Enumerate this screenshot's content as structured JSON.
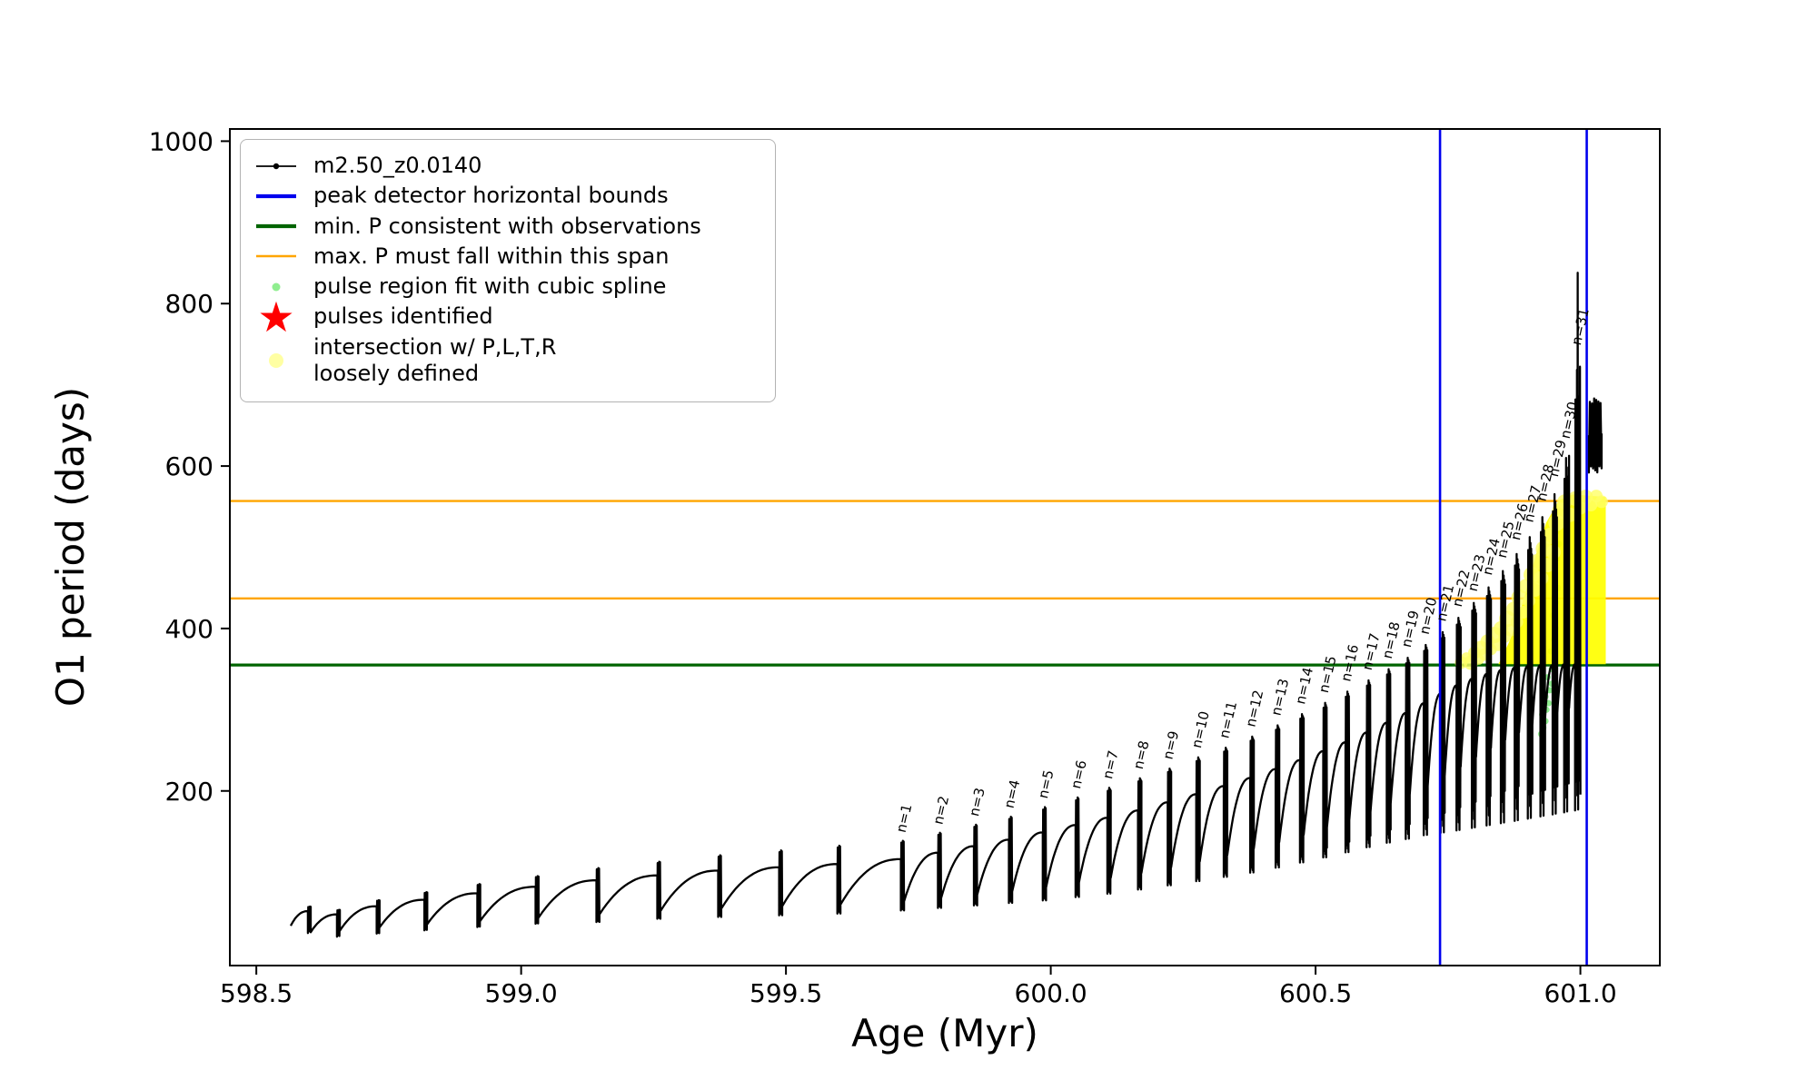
{
  "legend": {
    "items": [
      {
        "label": "m2.50_z0.0140",
        "marker": "line-dot",
        "color": "#000000",
        "icon": "series-line-icon"
      },
      {
        "label": "peak detector horizontal bounds",
        "marker": "line-thick",
        "color": "#0000ee",
        "icon": "blue-line-icon"
      },
      {
        "label": "min. P consistent with observations",
        "marker": "line-thick",
        "color": "#006400",
        "icon": "green-line-icon"
      },
      {
        "label": "max. P must fall within this span",
        "marker": "line",
        "color": "#ffa500",
        "icon": "orange-line-icon"
      },
      {
        "label": "pulse region fit with cubic spline",
        "marker": "dot",
        "color": "#90ee90",
        "icon": "spline-dot-icon"
      },
      {
        "label": "pulses identified",
        "marker": "star",
        "color": "#ff0000",
        "icon": "star-icon"
      },
      {
        "label": "intersection w/ P,L,T,R\nloosely defined",
        "marker": "dot-large",
        "color": "#ffff99",
        "icon": "yellow-dot-icon"
      }
    ]
  },
  "chart_data": {
    "type": "line",
    "title": "",
    "xlabel": "Age (Myr)",
    "ylabel": "O1 period (days)",
    "xlim": [
      598.45,
      601.15
    ],
    "ylim": [
      -15,
      1015
    ],
    "xticks": {
      "values": [
        598.5,
        599.0,
        599.5,
        600.0,
        600.5,
        601.0
      ],
      "labels": [
        "598.5",
        "599.0",
        "599.5",
        "600.0",
        "600.5",
        "601.0"
      ]
    },
    "yticks": {
      "values": [
        200,
        400,
        600,
        800,
        1000
      ],
      "labels": [
        "200",
        "400",
        "600",
        "800",
        "1000"
      ]
    },
    "series_label": "m2.50_z0.0140",
    "colors": {
      "series": "#000000",
      "peak_bounds": "#0000ee",
      "min_p": "#006400",
      "max_p_span": "#ffa500",
      "spline": "#90ee90",
      "pulses": "#ff0000",
      "intersection": "#ffff00",
      "intersection_soft": "#ffff66"
    },
    "vlines": [
      600.735,
      601.012
    ],
    "hline_green": 355,
    "hlines_orange": [
      437,
      557
    ],
    "lead_in": {
      "x": 598.565,
      "y": 34
    },
    "pulses": [
      {
        "label": null,
        "x": 598.6,
        "pk": 58,
        "sh": 52,
        "tr": 34,
        "dp": 24
      },
      {
        "label": null,
        "x": 598.655,
        "pk": 54,
        "sh": 48,
        "tr": 26,
        "dp": 20
      },
      {
        "label": null,
        "x": 598.73,
        "pk": 66,
        "sh": 58,
        "tr": 28,
        "dp": 24
      },
      {
        "label": null,
        "x": 598.82,
        "pk": 76,
        "sh": 66,
        "tr": 32,
        "dp": 28
      },
      {
        "label": null,
        "x": 598.92,
        "pk": 86,
        "sh": 74,
        "tr": 36,
        "dp": 32
      },
      {
        "label": null,
        "x": 599.03,
        "pk": 96,
        "sh": 82,
        "tr": 40,
        "dp": 36
      },
      {
        "label": null,
        "x": 599.145,
        "pk": 106,
        "sh": 90,
        "tr": 44,
        "dp": 38
      },
      {
        "label": null,
        "x": 599.26,
        "pk": 114,
        "sh": 96,
        "tr": 48,
        "dp": 42
      },
      {
        "label": null,
        "x": 599.375,
        "pk": 122,
        "sh": 102,
        "tr": 52,
        "dp": 44
      },
      {
        "label": null,
        "x": 599.49,
        "pk": 128,
        "sh": 106,
        "tr": 55,
        "dp": 46
      },
      {
        "label": null,
        "x": 599.6,
        "pk": 134,
        "sh": 110,
        "tr": 58,
        "dp": 48
      },
      {
        "label": "n=1",
        "x": 599.72,
        "pk": 140,
        "sh": 116,
        "tr": 60,
        "dp": 52
      },
      {
        "label": "n=2",
        "x": 599.79,
        "pk": 150,
        "sh": 124,
        "tr": 64,
        "dp": 55
      },
      {
        "label": "n=3",
        "x": 599.858,
        "pk": 160,
        "sh": 132,
        "tr": 68,
        "dp": 58
      },
      {
        "label": "n=4",
        "x": 599.924,
        "pk": 170,
        "sh": 140,
        "tr": 72,
        "dp": 61
      },
      {
        "label": "n=5",
        "x": 599.988,
        "pk": 182,
        "sh": 149,
        "tr": 76,
        "dp": 64
      },
      {
        "label": "n=6",
        "x": 600.05,
        "pk": 194,
        "sh": 158,
        "tr": 81,
        "dp": 68
      },
      {
        "label": "n=7",
        "x": 600.11,
        "pk": 206,
        "sh": 167,
        "tr": 87,
        "dp": 72
      },
      {
        "label": "n=8",
        "x": 600.168,
        "pk": 218,
        "sh": 176,
        "tr": 93,
        "dp": 77
      },
      {
        "label": "n=9",
        "x": 600.224,
        "pk": 230,
        "sh": 186,
        "tr": 99,
        "dp": 82
      },
      {
        "label": "n=10",
        "x": 600.278,
        "pk": 244,
        "sh": 196,
        "tr": 106,
        "dp": 87
      },
      {
        "label": "n=11",
        "x": 600.33,
        "pk": 256,
        "sh": 206,
        "tr": 113,
        "dp": 92
      },
      {
        "label": "n=12",
        "x": 600.38,
        "pk": 270,
        "sh": 216,
        "tr": 121,
        "dp": 97
      },
      {
        "label": "n=13",
        "x": 600.428,
        "pk": 284,
        "sh": 227,
        "tr": 129,
        "dp": 103
      },
      {
        "label": "n=14",
        "x": 600.474,
        "pk": 298,
        "sh": 238,
        "tr": 137,
        "dp": 109
      },
      {
        "label": "n=15",
        "x": 600.518,
        "pk": 312,
        "sh": 249,
        "tr": 146,
        "dp": 115
      },
      {
        "label": "n=16",
        "x": 600.56,
        "pk": 326,
        "sh": 260,
        "tr": 155,
        "dp": 121
      },
      {
        "label": "n=17",
        "x": 600.6,
        "pk": 340,
        "sh": 272,
        "tr": 164,
        "dp": 127
      },
      {
        "label": "n=18",
        "x": 600.638,
        "pk": 354,
        "sh": 284,
        "tr": 174,
        "dp": 132
      },
      {
        "label": "n=19",
        "x": 600.674,
        "pk": 368,
        "sh": 296,
        "tr": 184,
        "dp": 136
      },
      {
        "label": "n=20",
        "x": 600.708,
        "pk": 384,
        "sh": 308,
        "tr": 195,
        "dp": 140
      },
      {
        "label": "n=21",
        "x": 600.74,
        "pk": 400,
        "sh": 320,
        "tr": 206,
        "dp": 142
      },
      {
        "label": "n=22",
        "x": 600.77,
        "pk": 418,
        "sh": 330,
        "tr": 218,
        "dp": 144
      },
      {
        "label": "n=23",
        "x": 600.799,
        "pk": 437,
        "sh": 338,
        "tr": 230,
        "dp": 146
      },
      {
        "label": "n=24",
        "x": 600.827,
        "pk": 457,
        "sh": 344,
        "tr": 242,
        "dp": 148
      },
      {
        "label": "n=25",
        "x": 600.854,
        "pk": 478,
        "sh": 349,
        "tr": 253,
        "dp": 150
      },
      {
        "label": "n=26",
        "x": 600.88,
        "pk": 500,
        "sh": 352,
        "tr": 263,
        "dp": 152
      },
      {
        "label": "n=27",
        "x": 600.905,
        "pk": 522,
        "sh": 354,
        "tr": 272,
        "dp": 154
      },
      {
        "label": "n=28",
        "x": 600.929,
        "pk": 548,
        "sh": 355,
        "tr": 281,
        "dp": 156
      },
      {
        "label": "n=29",
        "x": 600.952,
        "pk": 578,
        "sh": 355,
        "tr": 289,
        "dp": 158
      },
      {
        "label": "n=30",
        "x": 600.974,
        "pk": 625,
        "sh": 356,
        "tr": 296,
        "dp": 160
      },
      {
        "label": "n=31",
        "x": 600.995,
        "pk": 740,
        "sh": 356,
        "tr": 302,
        "dp": 162,
        "spike_max": 838
      }
    ],
    "tail": {
      "x1": 601.016,
      "x2": 601.04,
      "lo": 592,
      "hi": 684,
      "end_y": 640,
      "cycles": 12
    },
    "spline_dots": [
      [
        600.926,
        270
      ],
      [
        600.93,
        278
      ],
      [
        600.934,
        286
      ],
      [
        600.928,
        294
      ],
      [
        600.936,
        300
      ],
      [
        600.94,
        308
      ],
      [
        600.934,
        316
      ],
      [
        600.942,
        324
      ],
      [
        600.946,
        332
      ],
      [
        600.938,
        340
      ],
      [
        600.946,
        350
      ],
      [
        600.95,
        360
      ],
      [
        600.944,
        372
      ],
      [
        600.95,
        386
      ],
      [
        600.954,
        400
      ],
      [
        600.948,
        416
      ],
      [
        600.954,
        432
      ],
      [
        600.958,
        450
      ],
      [
        600.952,
        468
      ],
      [
        600.956,
        486
      ],
      [
        600.96,
        504
      ],
      [
        600.956,
        520
      ]
    ],
    "yellow_region": {
      "polygon": [
        [
          600.845,
          356
        ],
        [
          601.048,
          356
        ],
        [
          601.048,
          562
        ],
        [
          600.985,
          565
        ],
        [
          600.96,
          558
        ],
        [
          600.935,
          530
        ],
        [
          600.915,
          488
        ],
        [
          600.898,
          448
        ],
        [
          600.882,
          412
        ],
        [
          600.866,
          384
        ],
        [
          600.85,
          362
        ]
      ],
      "dots": [
        [
          600.775,
          358,
          7
        ],
        [
          600.785,
          364,
          6
        ],
        [
          600.793,
          358,
          8
        ],
        [
          600.8,
          370,
          7
        ],
        [
          600.808,
          362,
          6
        ],
        [
          600.812,
          376,
          8
        ],
        [
          600.82,
          368,
          7
        ],
        [
          600.825,
          384,
          8
        ],
        [
          600.832,
          374,
          6
        ],
        [
          600.838,
          392,
          9
        ],
        [
          600.845,
          380,
          7
        ],
        [
          600.85,
          400,
          8
        ],
        [
          600.857,
          390,
          7
        ],
        [
          600.862,
          412,
          9
        ],
        [
          600.868,
          398,
          7
        ],
        [
          600.874,
          424,
          8
        ],
        [
          600.88,
          408,
          7
        ],
        [
          600.885,
          438,
          9
        ],
        [
          600.892,
          420,
          7
        ],
        [
          600.897,
          452,
          8
        ],
        [
          600.903,
          434,
          7
        ],
        [
          600.908,
          466,
          9
        ],
        [
          600.914,
          448,
          8
        ],
        [
          600.92,
          482,
          9
        ],
        [
          600.926,
          462,
          8
        ],
        [
          600.931,
          498,
          9
        ],
        [
          600.937,
          478,
          8
        ],
        [
          600.943,
          514,
          9
        ],
        [
          600.949,
          494,
          8
        ],
        [
          600.955,
          530,
          9
        ],
        [
          600.962,
          545,
          9
        ],
        [
          600.97,
          556,
          8
        ],
        [
          600.98,
          540,
          8
        ],
        [
          600.99,
          560,
          8
        ],
        [
          601.0,
          548,
          7
        ],
        [
          601.01,
          562,
          8
        ],
        [
          601.02,
          552,
          7
        ],
        [
          601.03,
          563,
          7
        ],
        [
          601.04,
          556,
          7
        ]
      ]
    }
  }
}
